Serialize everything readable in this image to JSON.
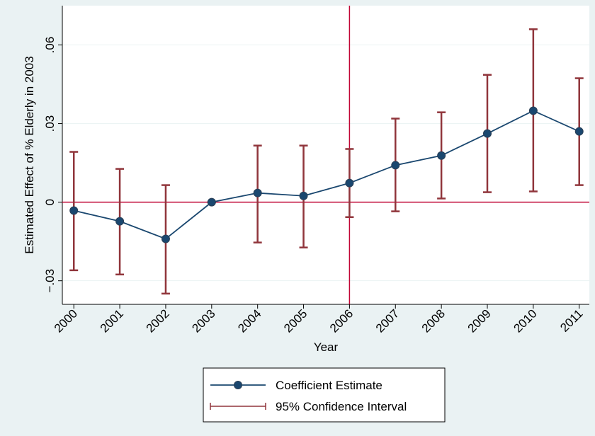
{
  "chart_data": {
    "type": "line",
    "x_label": "Year",
    "y_label": "Estimated Effect of % Elderly in 2003",
    "x": [
      2000,
      2001,
      2002,
      2003,
      2004,
      2005,
      2006,
      2007,
      2008,
      2009,
      2010,
      2011
    ],
    "series": [
      {
        "name": "Coefficient Estimate",
        "color": "#1a476f",
        "values": [
          -0.0032,
          -0.0073,
          -0.014,
          0,
          0.0035,
          0.0024,
          0.0073,
          0.0141,
          0.0178,
          0.0262,
          0.0349,
          0.027
        ]
      }
    ],
    "ci": {
      "name": "95% Confidence Interval",
      "color": "#90353b",
      "lower": [
        -0.026,
        -0.0276,
        -0.0349,
        0,
        -0.0154,
        -0.0173,
        -0.0057,
        -0.0035,
        0.0014,
        0.0038,
        0.0041,
        0.0065
      ],
      "upper": [
        0.0192,
        0.0127,
        0.0065,
        0,
        0.0216,
        0.0216,
        0.0203,
        0.0319,
        0.0343,
        0.0486,
        0.066,
        0.0473
      ]
    },
    "hline": 0,
    "vline": 2006,
    "ref_color": "#c10534",
    "xlim": [
      1999.75,
      2011.22
    ],
    "ylim": [
      -0.039,
      0.075
    ],
    "xticks": [
      2000,
      2001,
      2002,
      2003,
      2004,
      2005,
      2006,
      2007,
      2008,
      2009,
      2010,
      2011
    ],
    "yticks": [
      {
        "value": -0.03,
        "label": "−.03"
      },
      0,
      {
        "value": 0.03,
        "label": ".03"
      },
      {
        "value": 0.06,
        "label": ".06"
      }
    ],
    "grid": true
  }
}
